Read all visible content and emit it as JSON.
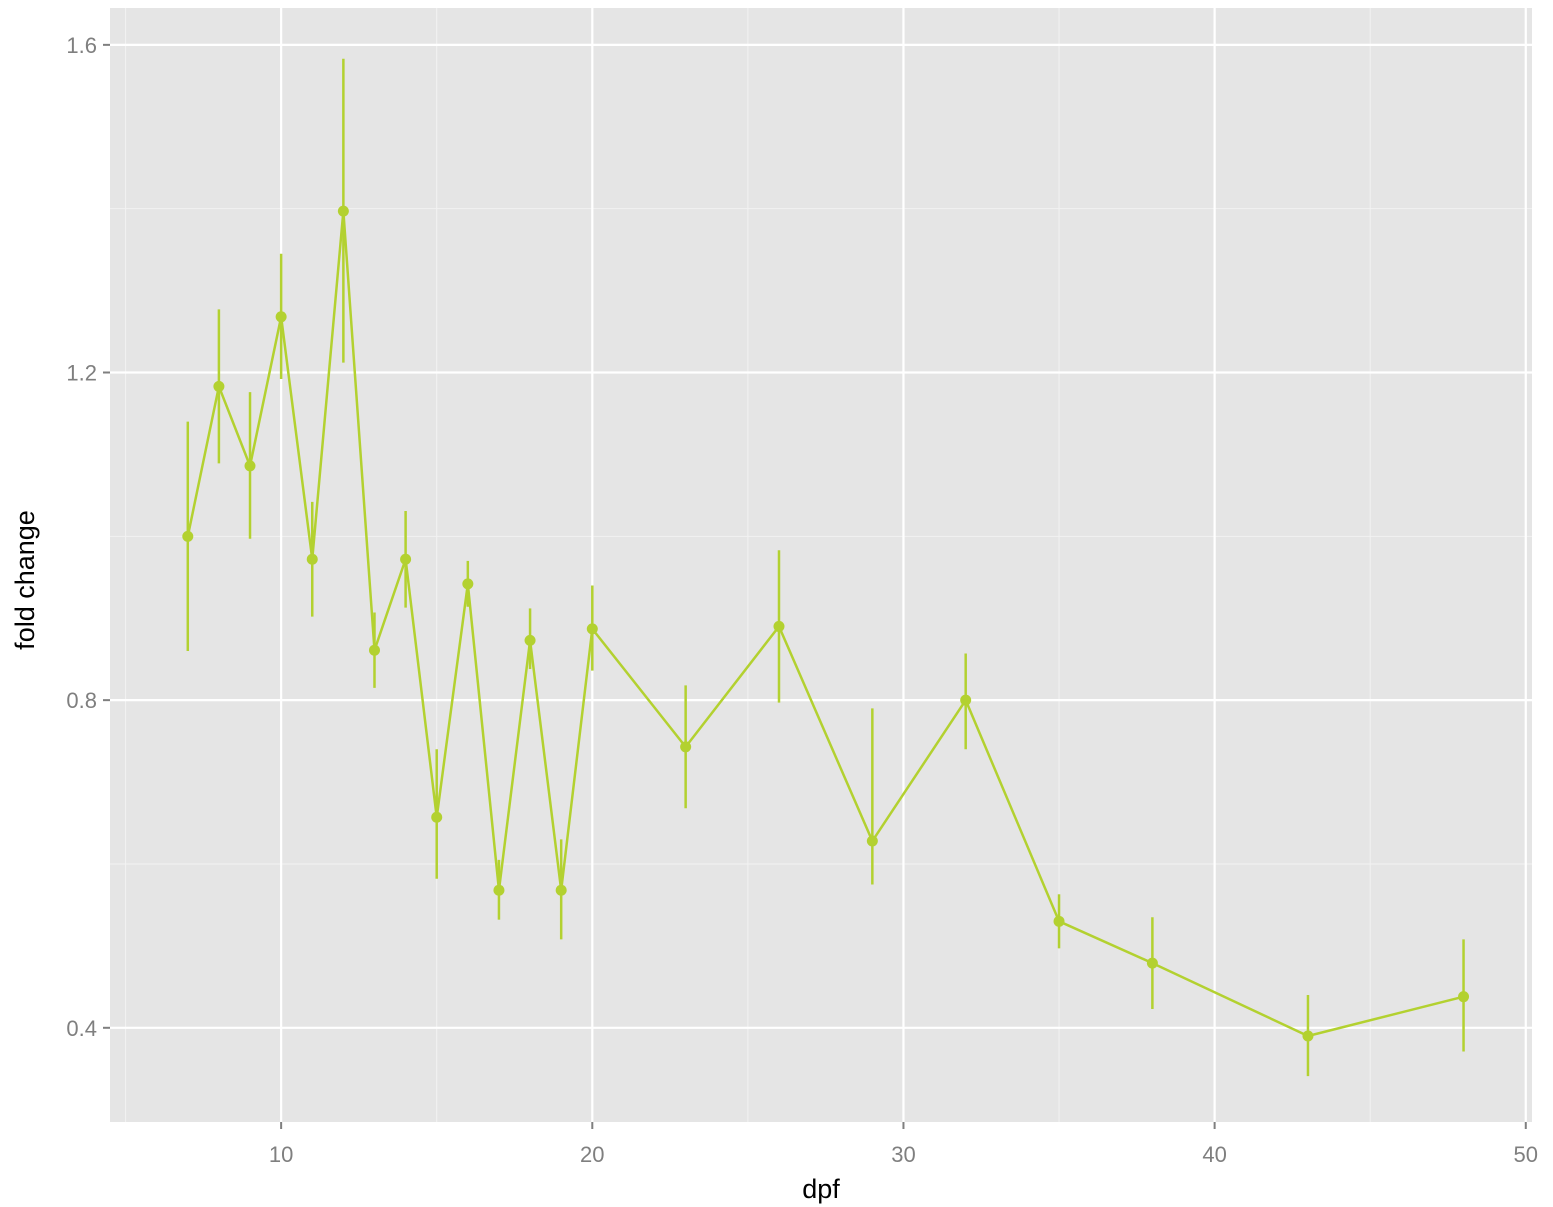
{
  "chart_data": {
    "type": "line",
    "title": "",
    "xlabel": "dpf",
    "ylabel": "fold change",
    "xlim": [
      4.5,
      50.2
    ],
    "ylim": [
      0.285,
      1.645
    ],
    "x_ticks": [
      10,
      20,
      30,
      40,
      50
    ],
    "x_tick_labels": [
      "10",
      "20",
      "30",
      "40",
      "50"
    ],
    "y_ticks": [
      0.4,
      0.8,
      1.2,
      1.6
    ],
    "y_tick_labels": [
      "0.4",
      "0.8",
      "1.2",
      "1.6"
    ],
    "grid": true,
    "legend": "none",
    "colors": {
      "panel_background": "#e5e5e5",
      "grid_major": "#ffffff",
      "grid_minor": "#f2f2f2",
      "series": "#b3d130",
      "tick_label": "#7f7f7f",
      "axis_title": "#000000"
    },
    "series": [
      {
        "points": [
          {
            "x": 7,
            "y": 1.0,
            "ymin": 0.86,
            "ymax": 1.14
          },
          {
            "x": 8,
            "y": 1.183,
            "ymin": 1.089,
            "ymax": 1.277
          },
          {
            "x": 9,
            "y": 1.086,
            "ymin": 0.997,
            "ymax": 1.176
          },
          {
            "x": 10,
            "y": 1.268,
            "ymin": 1.192,
            "ymax": 1.345
          },
          {
            "x": 11,
            "y": 0.972,
            "ymin": 0.902,
            "ymax": 1.042
          },
          {
            "x": 12,
            "y": 1.397,
            "ymin": 1.212,
            "ymax": 1.583
          },
          {
            "x": 13,
            "y": 0.861,
            "ymin": 0.815,
            "ymax": 0.907
          },
          {
            "x": 14,
            "y": 0.972,
            "ymin": 0.913,
            "ymax": 1.031
          },
          {
            "x": 15,
            "y": 0.657,
            "ymin": 0.582,
            "ymax": 0.74
          },
          {
            "x": 16,
            "y": 0.942,
            "ymin": 0.914,
            "ymax": 0.97
          },
          {
            "x": 17,
            "y": 0.568,
            "ymin": 0.532,
            "ymax": 0.605
          },
          {
            "x": 18,
            "y": 0.873,
            "ymin": 0.838,
            "ymax": 0.912
          },
          {
            "x": 19,
            "y": 0.568,
            "ymin": 0.508,
            "ymax": 0.63
          },
          {
            "x": 20,
            "y": 0.887,
            "ymin": 0.836,
            "ymax": 0.94
          },
          {
            "x": 23,
            "y": 0.743,
            "ymin": 0.668,
            "ymax": 0.818
          },
          {
            "x": 26,
            "y": 0.89,
            "ymin": 0.797,
            "ymax": 0.983
          },
          {
            "x": 29,
            "y": 0.628,
            "ymin": 0.575,
            "ymax": 0.79
          },
          {
            "x": 32,
            "y": 0.8,
            "ymin": 0.74,
            "ymax": 0.857
          },
          {
            "x": 35,
            "y": 0.53,
            "ymin": 0.497,
            "ymax": 0.563
          },
          {
            "x": 38,
            "y": 0.479,
            "ymin": 0.423,
            "ymax": 0.535
          },
          {
            "x": 43,
            "y": 0.39,
            "ymin": 0.341,
            "ymax": 0.44
          },
          {
            "x": 48,
            "y": 0.438,
            "ymin": 0.371,
            "ymax": 0.508
          }
        ]
      }
    ]
  }
}
